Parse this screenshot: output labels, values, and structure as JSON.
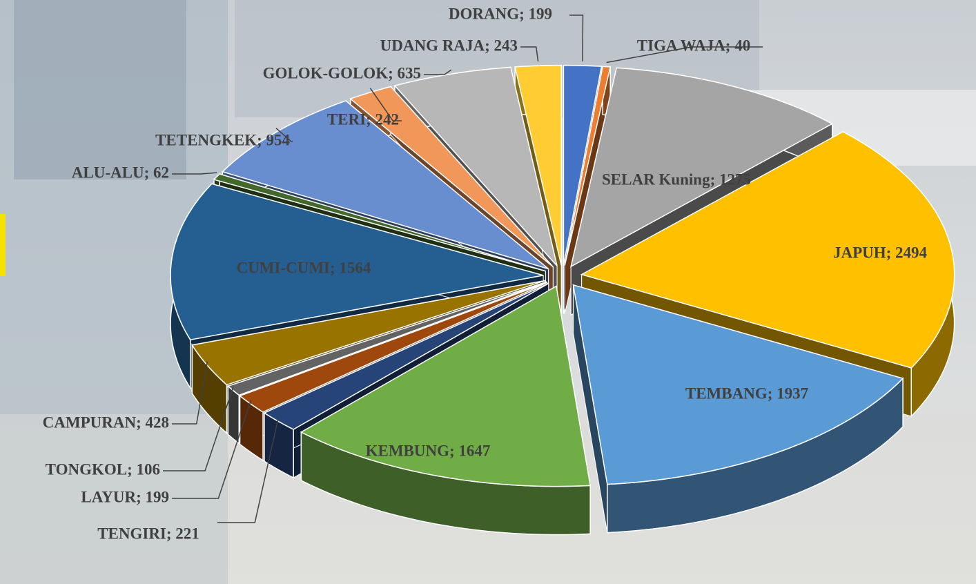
{
  "chart_data": {
    "type": "pie",
    "values": [
      199,
      40,
      1275,
      2494,
      1937,
      1647,
      221,
      199,
      106,
      428,
      1564,
      62,
      954,
      242,
      635,
      243
    ],
    "value_labels": [
      "DORANG; 199",
      "TIGA WAJA; 40",
      "SELAR Kuning; 1275",
      "JAPUH; 2494",
      "TEMBANG; 1937",
      "KEMBUNG; 1647",
      "TENGIRI; 221",
      "LAYUR; 199",
      "TONGKOL; 106",
      "CAMPURAN; 428",
      "CUMI-CUMI; 1564",
      "ALU-ALU; 62",
      "TETENGKEK; 954",
      "TERI; 242",
      "GOLOK-GOLOK; 635",
      "UDANG RAJA; 243"
    ],
    "colors": [
      "#4472c4",
      "#ed7d31",
      "#a5a5a5",
      "#ffc000",
      "#5b9bd5",
      "#70ad47",
      "#264478",
      "#9e480e",
      "#636363",
      "#997300",
      "#255e91",
      "#43682b",
      "#698ed0",
      "#f1975a",
      "#b7b7b7",
      "#ffcd33"
    ]
  }
}
